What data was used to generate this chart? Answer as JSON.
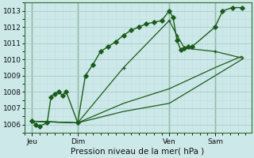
{
  "title": "Pression niveau de la mer( hPa )",
  "background_color": "#cce8e8",
  "plot_bg_color": "#cce8e8",
  "grid_major_color": "#aacccc",
  "grid_minor_color": "#c0dcdc",
  "line_color": "#1a5c1a",
  "ylim": [
    1005.5,
    1013.5
  ],
  "yticks": [
    1006,
    1007,
    1008,
    1009,
    1010,
    1011,
    1012,
    1013
  ],
  "xlim": [
    -8,
    230
  ],
  "day_labels": [
    "Jeu",
    "Dim",
    "Ven",
    "Sam"
  ],
  "day_positions": [
    0,
    48,
    144,
    192
  ],
  "line1_x": [
    0,
    4,
    8,
    16,
    20,
    24,
    28,
    32,
    36,
    48,
    56,
    64,
    72,
    80,
    88,
    96,
    104,
    112,
    120,
    128,
    136,
    144,
    148,
    152,
    156,
    160,
    164,
    168,
    192,
    200,
    210,
    220
  ],
  "line1_y": [
    1006.2,
    1006.0,
    1005.9,
    1006.1,
    1007.7,
    1007.9,
    1008.0,
    1007.8,
    1008.0,
    1006.1,
    1009.0,
    1009.7,
    1010.5,
    1010.8,
    1011.1,
    1011.5,
    1011.8,
    1012.0,
    1012.2,
    1012.3,
    1012.4,
    1013.0,
    1012.6,
    1011.2,
    1010.6,
    1010.7,
    1010.8,
    1010.8,
    1012.0,
    1013.0,
    1013.2,
    1013.2
  ],
  "line2_x": [
    0,
    48,
    96,
    144,
    192,
    220
  ],
  "line2_y": [
    1006.2,
    1006.1,
    1007.3,
    1008.2,
    1009.5,
    1010.2
  ],
  "line3_x": [
    0,
    48,
    96,
    144,
    192,
    220
  ],
  "line3_y": [
    1006.2,
    1006.1,
    1006.8,
    1007.3,
    1009.0,
    1010.0
  ],
  "line4_x": [
    0,
    48,
    96,
    144,
    152,
    160,
    192,
    220
  ],
  "line4_y": [
    1006.2,
    1006.1,
    1009.5,
    1012.4,
    1011.5,
    1010.7,
    1010.5,
    1010.1
  ],
  "vline_positions": [
    0,
    48,
    144,
    192
  ]
}
